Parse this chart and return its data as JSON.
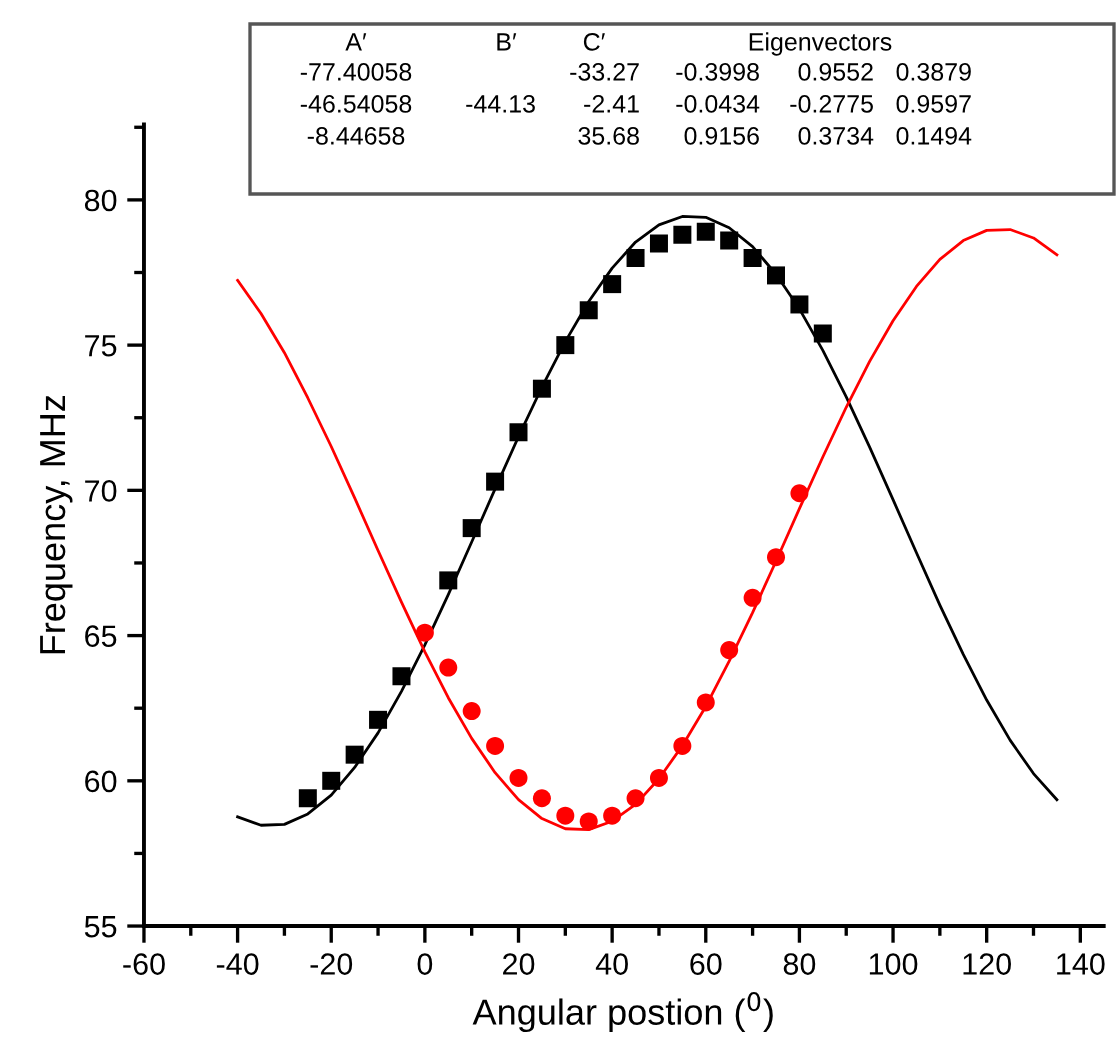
{
  "chart_data": {
    "type": "scatter",
    "xlabel": "Angular postion ($^{0}$)",
    "ylabel": "Frequency, MHz",
    "xlim": [
      -60,
      145
    ],
    "xticks": [
      -60,
      -40,
      -20,
      0,
      20,
      40,
      60,
      80,
      100,
      120,
      140
    ],
    "ylim": [
      55,
      82.6
    ],
    "yticks": [
      55,
      60,
      65,
      70,
      75,
      80
    ],
    "grid": false,
    "legend": false,
    "annotations": [
      "A′",
      "B′",
      "C′",
      "Eigenvectors",
      "-77.40058",
      "-33.27",
      "-0.3998",
      "0.9552",
      "0.3879",
      "-46.54058",
      "-44.13",
      "-2.41",
      "-0.0434",
      "-0.2775",
      "0.9597",
      "-8.44658",
      "35.68",
      "0.9156",
      "0.3734",
      "0.1494"
    ],
    "series": [
      {
        "marker": "square",
        "color": "#000000",
        "x": [
          -25,
          -20,
          -15,
          -10,
          -5,
          5,
          10,
          15,
          20,
          25,
          30,
          35,
          40,
          45,
          50,
          55,
          60,
          65,
          70,
          75,
          80,
          85
        ],
        "values": [
          59.4,
          60.0,
          60.9,
          62.1,
          63.6,
          66.9,
          68.7,
          70.3,
          72.0,
          73.5,
          75.0,
          76.2,
          77.1,
          78.0,
          78.5,
          78.8,
          78.9,
          78.6,
          78.0,
          77.4,
          76.4,
          75.4
        ]
      },
      {
        "marker": "circle",
        "color": "#ff0000",
        "x": [
          0,
          5,
          10,
          15,
          20,
          25,
          30,
          35,
          40,
          45,
          50,
          55,
          60,
          65,
          70,
          75,
          80
        ],
        "values": [
          65.1,
          63.9,
          62.4,
          61.2,
          60.1,
          59.4,
          58.8,
          58.6,
          58.8,
          59.4,
          60.1,
          61.2,
          62.7,
          64.5,
          66.3,
          67.7,
          69.9
        ]
      },
      {
        "type": "line",
        "marker": "none",
        "line_style": "solid",
        "color": "#000000",
        "x": [
          -40,
          -35,
          -30,
          -25,
          -20,
          -15,
          -10,
          -5,
          0,
          5,
          10,
          15,
          20,
          25,
          30,
          35,
          40,
          45,
          50,
          55,
          60,
          65,
          70,
          75,
          80,
          85,
          90,
          95,
          100,
          105,
          110,
          115,
          120,
          125,
          130,
          135
        ],
        "values": [
          58.76,
          58.47,
          58.5,
          58.86,
          59.51,
          60.46,
          61.65,
          63.08,
          64.68,
          66.41,
          68.22,
          70.05,
          71.85,
          73.55,
          75.12,
          76.5,
          77.65,
          78.55,
          79.14,
          79.43,
          79.4,
          79.04,
          78.39,
          77.44,
          76.25,
          74.82,
          73.22,
          71.49,
          69.68,
          67.85,
          66.05,
          64.35,
          62.78,
          61.4,
          60.25,
          59.35
        ]
      },
      {
        "type": "line",
        "marker": "none",
        "line_style": "solid",
        "color": "#ff0000",
        "x": [
          -40,
          -35,
          -30,
          -25,
          -20,
          -15,
          -10,
          -5,
          0,
          5,
          10,
          15,
          20,
          25,
          30,
          35,
          40,
          45,
          50,
          55,
          60,
          65,
          70,
          75,
          80,
          85,
          90,
          95,
          100,
          105,
          110,
          115,
          120,
          125,
          130,
          135
        ],
        "values": [
          77.23,
          76.09,
          74.74,
          73.18,
          71.51,
          69.74,
          67.93,
          66.15,
          64.44,
          62.86,
          61.46,
          60.28,
          59.35,
          58.7,
          58.35,
          58.32,
          58.61,
          59.19,
          60.07,
          61.21,
          62.56,
          64.12,
          65.79,
          67.56,
          69.37,
          71.15,
          72.86,
          74.44,
          75.84,
          77.02,
          77.95,
          78.6,
          78.95,
          78.98,
          78.69,
          78.11
        ]
      }
    ]
  }
}
